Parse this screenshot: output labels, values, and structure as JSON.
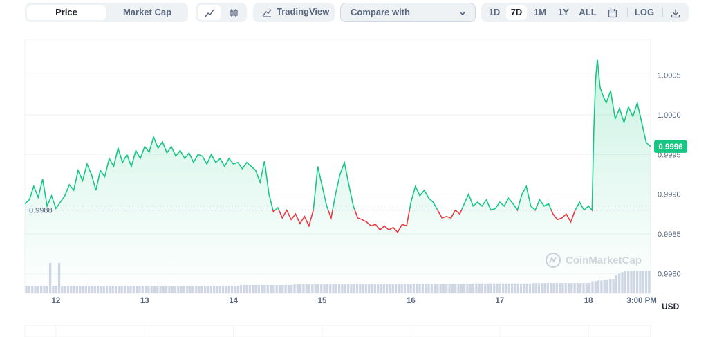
{
  "toolbar": {
    "tabs": [
      {
        "label": "Price",
        "active": true
      },
      {
        "label": "Market Cap",
        "active": false
      }
    ],
    "tradingview_label": "TradingView",
    "compare_label": "Compare with",
    "ranges": [
      {
        "label": "1D",
        "active": false
      },
      {
        "label": "7D",
        "active": true
      },
      {
        "label": "1M",
        "active": false
      },
      {
        "label": "1Y",
        "active": false
      },
      {
        "label": "ALL",
        "active": false
      }
    ],
    "log_label": "LOG"
  },
  "chart_data": {
    "type": "line",
    "title": "",
    "currency_label": "USD",
    "watermark": "CoinMarketCap",
    "baseline": {
      "value": 0.9988,
      "label": "0.9988"
    },
    "current": {
      "value": 0.9996,
      "label": "0.9996"
    },
    "ylim": [
      0.99775,
      1.00095
    ],
    "y_ticks": [
      {
        "value": 1.0005,
        "label": "1.0005"
      },
      {
        "value": 1.0,
        "label": "1.0000"
      },
      {
        "value": 0.9995,
        "label": "0.9995"
      },
      {
        "value": 0.999,
        "label": "0.9990"
      },
      {
        "value": 0.9985,
        "label": "0.9985"
      },
      {
        "value": 0.998,
        "label": "0.9980"
      }
    ],
    "xlim": [
      11.65,
      18.7
    ],
    "x_ticks": [
      {
        "value": 12,
        "label": "12"
      },
      {
        "value": 13,
        "label": "13"
      },
      {
        "value": 14,
        "label": "14"
      },
      {
        "value": 15,
        "label": "15"
      },
      {
        "value": 16,
        "label": "16"
      },
      {
        "value": 17,
        "label": "17"
      },
      {
        "value": 18,
        "label": "18"
      },
      {
        "value": 18.6,
        "label": "3:00 PM"
      }
    ],
    "colors": {
      "up": "#16c784",
      "down": "#ea3943",
      "volume": "#cfd6e4"
    },
    "series": [
      {
        "name": "Price (USD)",
        "points": [
          [
            11.65,
            0.99888
          ],
          [
            11.7,
            0.99893
          ],
          [
            11.75,
            0.9991
          ],
          [
            11.8,
            0.99896
          ],
          [
            11.85,
            0.99919
          ],
          [
            11.9,
            0.99885
          ],
          [
            11.95,
            0.99898
          ],
          [
            12.0,
            0.99882
          ],
          [
            12.05,
            0.9989
          ],
          [
            12.1,
            0.99898
          ],
          [
            12.15,
            0.99912
          ],
          [
            12.2,
            0.99905
          ],
          [
            12.25,
            0.9993
          ],
          [
            12.3,
            0.99917
          ],
          [
            12.35,
            0.99938
          ],
          [
            12.4,
            0.99925
          ],
          [
            12.45,
            0.99905
          ],
          [
            12.5,
            0.9993
          ],
          [
            12.55,
            0.99922
          ],
          [
            12.6,
            0.99945
          ],
          [
            12.65,
            0.99935
          ],
          [
            12.7,
            0.99958
          ],
          [
            12.75,
            0.9994
          ],
          [
            12.8,
            0.9995
          ],
          [
            12.85,
            0.99935
          ],
          [
            12.9,
            0.99955
          ],
          [
            12.95,
            0.99945
          ],
          [
            13.0,
            0.9996
          ],
          [
            13.05,
            0.99953
          ],
          [
            13.1,
            0.99972
          ],
          [
            13.15,
            0.99958
          ],
          [
            13.2,
            0.99966
          ],
          [
            13.25,
            0.99952
          ],
          [
            13.3,
            0.9996
          ],
          [
            13.35,
            0.99948
          ],
          [
            13.4,
            0.99955
          ],
          [
            13.45,
            0.99945
          ],
          [
            13.5,
            0.99952
          ],
          [
            13.55,
            0.9994
          ],
          [
            13.6,
            0.9995
          ],
          [
            13.65,
            0.99948
          ],
          [
            13.7,
            0.99938
          ],
          [
            13.75,
            0.9995
          ],
          [
            13.8,
            0.9994
          ],
          [
            13.85,
            0.99945
          ],
          [
            13.9,
            0.99935
          ],
          [
            13.95,
            0.99945
          ],
          [
            14.0,
            0.99938
          ],
          [
            14.05,
            0.9994
          ],
          [
            14.1,
            0.99932
          ],
          [
            14.15,
            0.9994
          ],
          [
            14.2,
            0.99935
          ],
          [
            14.25,
            0.9993
          ],
          [
            14.3,
            0.99915
          ],
          [
            14.35,
            0.99942
          ],
          [
            14.4,
            0.999
          ],
          [
            14.45,
            0.99878
          ],
          [
            14.5,
            0.99883
          ],
          [
            14.55,
            0.9987
          ],
          [
            14.6,
            0.9988
          ],
          [
            14.65,
            0.99868
          ],
          [
            14.7,
            0.99875
          ],
          [
            14.75,
            0.99863
          ],
          [
            14.8,
            0.99872
          ],
          [
            14.85,
            0.9986
          ],
          [
            14.9,
            0.9988
          ],
          [
            14.95,
            0.99935
          ],
          [
            15.0,
            0.9991
          ],
          [
            15.05,
            0.99885
          ],
          [
            15.1,
            0.9987
          ],
          [
            15.15,
            0.999
          ],
          [
            15.2,
            0.99925
          ],
          [
            15.25,
            0.9994
          ],
          [
            15.3,
            0.99912
          ],
          [
            15.35,
            0.99885
          ],
          [
            15.4,
            0.9987
          ],
          [
            15.45,
            0.99868
          ],
          [
            15.5,
            0.99865
          ],
          [
            15.55,
            0.9986
          ],
          [
            15.6,
            0.99862
          ],
          [
            15.65,
            0.99855
          ],
          [
            15.7,
            0.9986
          ],
          [
            15.75,
            0.99855
          ],
          [
            15.8,
            0.99858
          ],
          [
            15.85,
            0.99852
          ],
          [
            15.9,
            0.99862
          ],
          [
            15.95,
            0.9986
          ],
          [
            16.0,
            0.9989
          ],
          [
            16.05,
            0.9991
          ],
          [
            16.1,
            0.99898
          ],
          [
            16.15,
            0.99905
          ],
          [
            16.2,
            0.99895
          ],
          [
            16.25,
            0.9989
          ],
          [
            16.3,
            0.9988
          ],
          [
            16.35,
            0.9987
          ],
          [
            16.4,
            0.99872
          ],
          [
            16.45,
            0.9987
          ],
          [
            16.5,
            0.9988
          ],
          [
            16.55,
            0.99875
          ],
          [
            16.6,
            0.99888
          ],
          [
            16.65,
            0.999
          ],
          [
            16.7,
            0.99885
          ],
          [
            16.75,
            0.9989
          ],
          [
            16.8,
            0.99885
          ],
          [
            16.85,
            0.99893
          ],
          [
            16.9,
            0.9988
          ],
          [
            16.95,
            0.99882
          ],
          [
            17.0,
            0.9989
          ],
          [
            17.05,
            0.99885
          ],
          [
            17.1,
            0.99895
          ],
          [
            17.15,
            0.99888
          ],
          [
            17.2,
            0.9988
          ],
          [
            17.25,
            0.999
          ],
          [
            17.3,
            0.9991
          ],
          [
            17.35,
            0.99885
          ],
          [
            17.4,
            0.9988
          ],
          [
            17.45,
            0.99893
          ],
          [
            17.5,
            0.99885
          ],
          [
            17.55,
            0.99888
          ],
          [
            17.6,
            0.99875
          ],
          [
            17.65,
            0.99868
          ],
          [
            17.7,
            0.9987
          ],
          [
            17.75,
            0.99875
          ],
          [
            17.8,
            0.99865
          ],
          [
            17.85,
            0.9988
          ],
          [
            17.9,
            0.9989
          ],
          [
            17.95,
            0.9988
          ],
          [
            18.0,
            0.99885
          ],
          [
            18.04,
            0.9988
          ],
          [
            18.06,
            0.9998
          ],
          [
            18.08,
            1.00045
          ],
          [
            18.1,
            1.0007
          ],
          [
            18.13,
            1.00035
          ],
          [
            18.16,
            1.00025
          ],
          [
            18.2,
            1.00015
          ],
          [
            18.25,
            1.0003
          ],
          [
            18.3,
            0.99995
          ],
          [
            18.35,
            1.00008
          ],
          [
            18.4,
            0.9999
          ],
          [
            18.45,
            1.0001
          ],
          [
            18.5,
            0.99998
          ],
          [
            18.55,
            1.00015
          ],
          [
            18.6,
            0.9999
          ],
          [
            18.65,
            0.99965
          ],
          [
            18.7,
            0.9996
          ]
        ]
      }
    ],
    "volume": [
      1,
      1,
      1,
      1,
      1,
      1,
      1,
      1,
      4,
      1,
      1,
      4,
      1,
      1,
      1,
      1,
      1,
      1,
      1,
      1,
      1,
      1,
      1,
      1,
      1,
      1,
      1,
      1,
      1,
      1,
      1,
      1,
      1,
      1,
      1,
      1,
      1,
      1,
      1,
      1,
      0.95,
      0.95,
      0.95,
      0.95,
      0.95,
      0.95,
      0.95,
      0.95,
      0.95,
      0.95,
      0.95,
      0.95,
      0.95,
      0.95,
      0.95,
      0.95,
      0.95,
      0.95,
      0.95,
      0.95,
      1,
      1,
      1,
      1,
      1,
      1,
      1,
      1,
      1,
      1,
      1,
      1,
      1.1,
      1.1,
      1.1,
      1.1,
      1.1,
      1.1,
      1.1,
      1.1,
      1.1,
      1.1,
      1.1,
      1.1,
      1.1,
      1.1,
      1.1,
      1.1,
      1.1,
      1.1,
      1.2,
      1.2,
      1.2,
      1.2,
      1.2,
      1.2,
      1.2,
      1.2,
      1.2,
      1.2,
      1.2,
      1.2,
      1.2,
      1.2,
      1.2,
      1.2,
      1.2,
      1.2,
      1.2,
      1.2,
      1.2,
      1.2,
      1.2,
      1.2,
      1.2,
      1.2,
      1.2,
      1.2,
      1.2,
      1.2,
      1.2,
      1.2,
      1.2,
      1.2,
      1.2,
      1.2,
      1.2,
      1.2,
      1.2,
      1.2,
      1.25,
      1.25,
      1.25,
      1.25,
      1.25,
      1.25,
      1.25,
      1.25,
      1.25,
      1.25,
      1.25,
      1.25,
      1.25,
      1.25,
      1.25,
      1.25,
      1.25,
      1.25,
      1.25,
      1.25,
      1.3,
      1.3,
      1.3,
      1.3,
      1.3,
      1.3,
      1.3,
      1.3,
      1.3,
      1.3,
      1.3,
      1.3,
      1.3,
      1.3,
      1.3,
      1.3,
      1.3,
      1.3,
      1.3,
      1.3,
      1.35,
      1.35,
      1.35,
      1.35,
      1.35,
      1.35,
      1.35,
      1.35,
      1.35,
      1.35,
      1.35,
      1.35,
      1.35,
      1.35,
      1.35,
      1.35,
      1.35,
      1.35,
      1.35,
      1.35,
      1.6,
      1.6,
      1.7,
      1.7,
      1.8,
      1.8,
      1.9,
      1.9,
      2.4,
      2.6,
      2.8,
      2.9,
      3.0,
      3.0,
      3.0,
      3.0,
      3.0,
      3.0,
      3.0,
      3.0
    ]
  }
}
